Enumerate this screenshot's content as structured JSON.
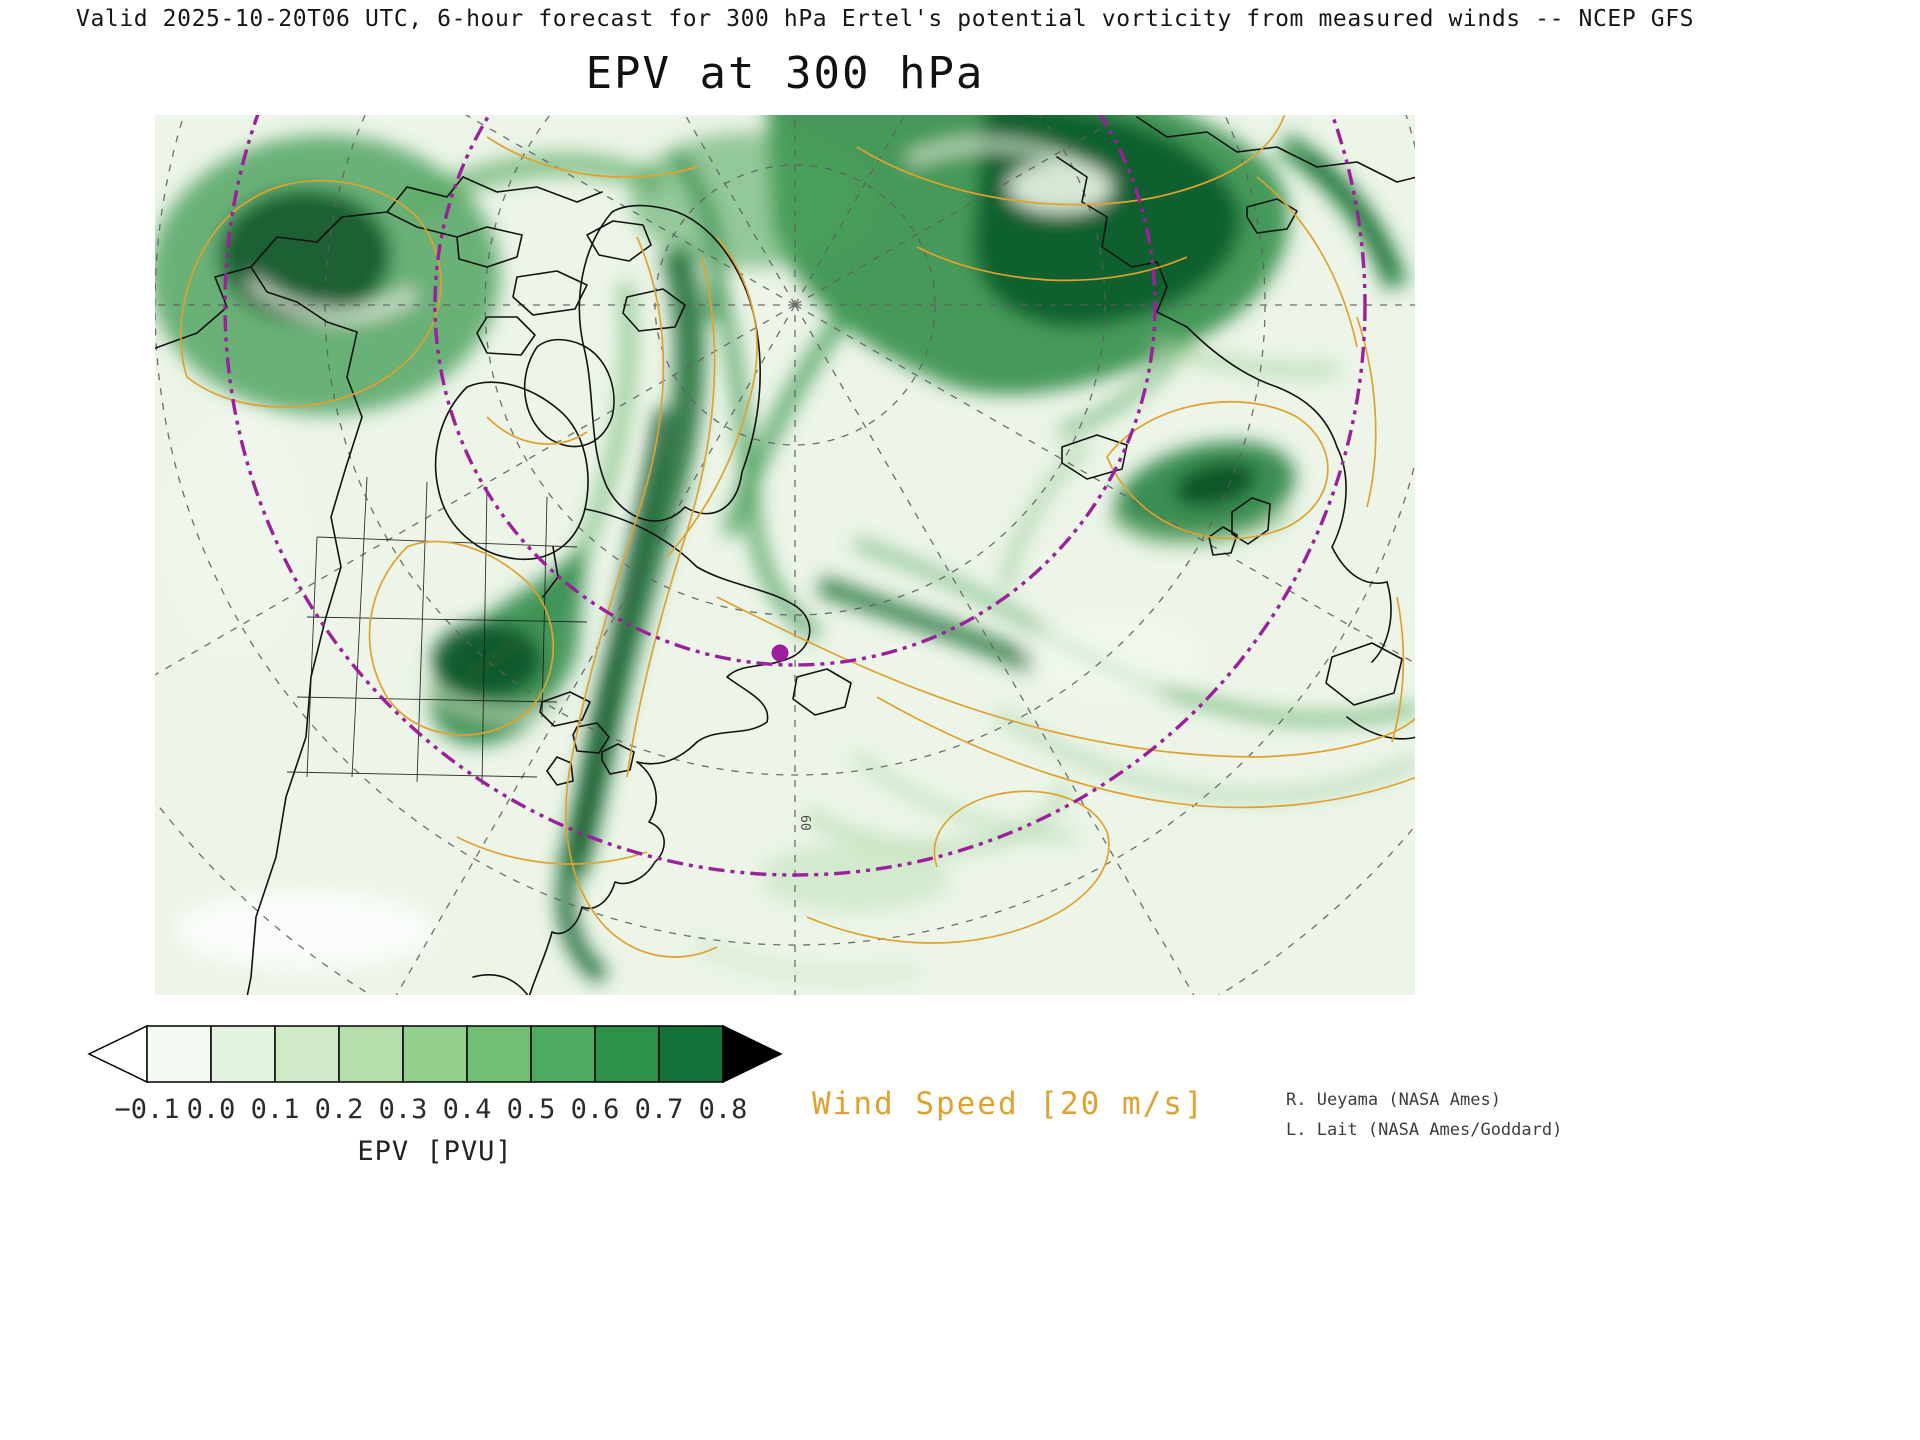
{
  "header": {
    "subtitle": "Valid 2025-10-20T06 UTC, 6-hour forecast for 300 hPa Ertel's potential vorticity from measured winds -- NCEP GFS",
    "title": "EPV at 300 hPa"
  },
  "map": {
    "graticule_label": "60"
  },
  "chart_data": {
    "type": "heatmap",
    "title": "EPV at 300 hPa",
    "subtitle": "Valid 2025-10-20T06 UTC, 6-hour forecast for 300 hPa Ertel's potential vorticity from measured winds -- NCEP GFS",
    "variable": "Ertel's potential vorticity (EPV)",
    "level": "300 hPa",
    "valid": "2025-10-20T06 UTC",
    "forecast_hours": 6,
    "model": "NCEP GFS",
    "colorbar": {
      "label": "EPV [PVU]",
      "ticks": [
        "−0.1",
        "0.0",
        "0.1",
        "0.2",
        "0.3",
        "0.4",
        "0.5",
        "0.6",
        "0.7",
        "0.8"
      ],
      "segment_colors": [
        "#f3faf1",
        "#e4f3df",
        "#d0eac8",
        "#b5deac",
        "#94cf8e",
        "#70bf74",
        "#4cab5e",
        "#2d9149",
        "#127237"
      ],
      "under_arrow_color": "#ffffff",
      "over_arrow_color": "#000000"
    },
    "overlays": {
      "wind_speed_contours": {
        "label": "Wind Speed [20 m/s]",
        "interval_m_s": 20,
        "color": "#dfa22e"
      },
      "latitude_circles_color": "#9c1f9c",
      "graticule_labels": [
        "60"
      ]
    }
  },
  "footer": {
    "wind_speed_label": "Wind Speed [20 m/s]",
    "credit_line1": "R. Ueyama (NASA Ames)",
    "credit_line2": "L. Lait (NASA Ames/Goddard)"
  }
}
